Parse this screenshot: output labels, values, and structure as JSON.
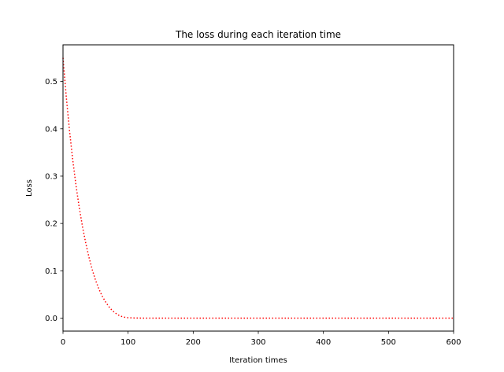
{
  "chart_data": {
    "type": "line",
    "title": "The loss during each iteration time",
    "xlabel": "Iteration times",
    "ylabel": "Loss",
    "xlim": [
      0,
      600
    ],
    "ylim": [
      -0.0275,
      0.5775
    ],
    "xticks": [
      0,
      100,
      200,
      300,
      400,
      500,
      600
    ],
    "yticks": [
      0.0,
      0.1,
      0.2,
      0.3,
      0.4,
      0.5
    ],
    "ytick_labels": [
      "0.0",
      "0.1",
      "0.2",
      "0.3",
      "0.4",
      "0.5"
    ],
    "grid": false,
    "legend": "none",
    "series": [
      {
        "color": "#ff0000",
        "line_style": "dotted",
        "x": [
          0,
          5,
          10,
          15,
          20,
          25,
          30,
          35,
          40,
          45,
          50,
          55,
          60,
          65,
          70,
          75,
          80,
          85,
          90,
          95,
          100,
          110,
          120,
          130,
          140,
          150,
          200,
          300,
          400,
          500,
          600
        ],
        "y": [
          0.55,
          0.468,
          0.396,
          0.334,
          0.28,
          0.233,
          0.193,
          0.158,
          0.128,
          0.102,
          0.08,
          0.062,
          0.047,
          0.035,
          0.025,
          0.017,
          0.011,
          0.0065,
          0.0035,
          0.0017,
          0.0008,
          0.0002,
          0.0,
          0.0,
          0.0,
          0.0,
          0.0,
          0.0,
          0.0,
          0.0,
          0.0
        ]
      }
    ]
  }
}
